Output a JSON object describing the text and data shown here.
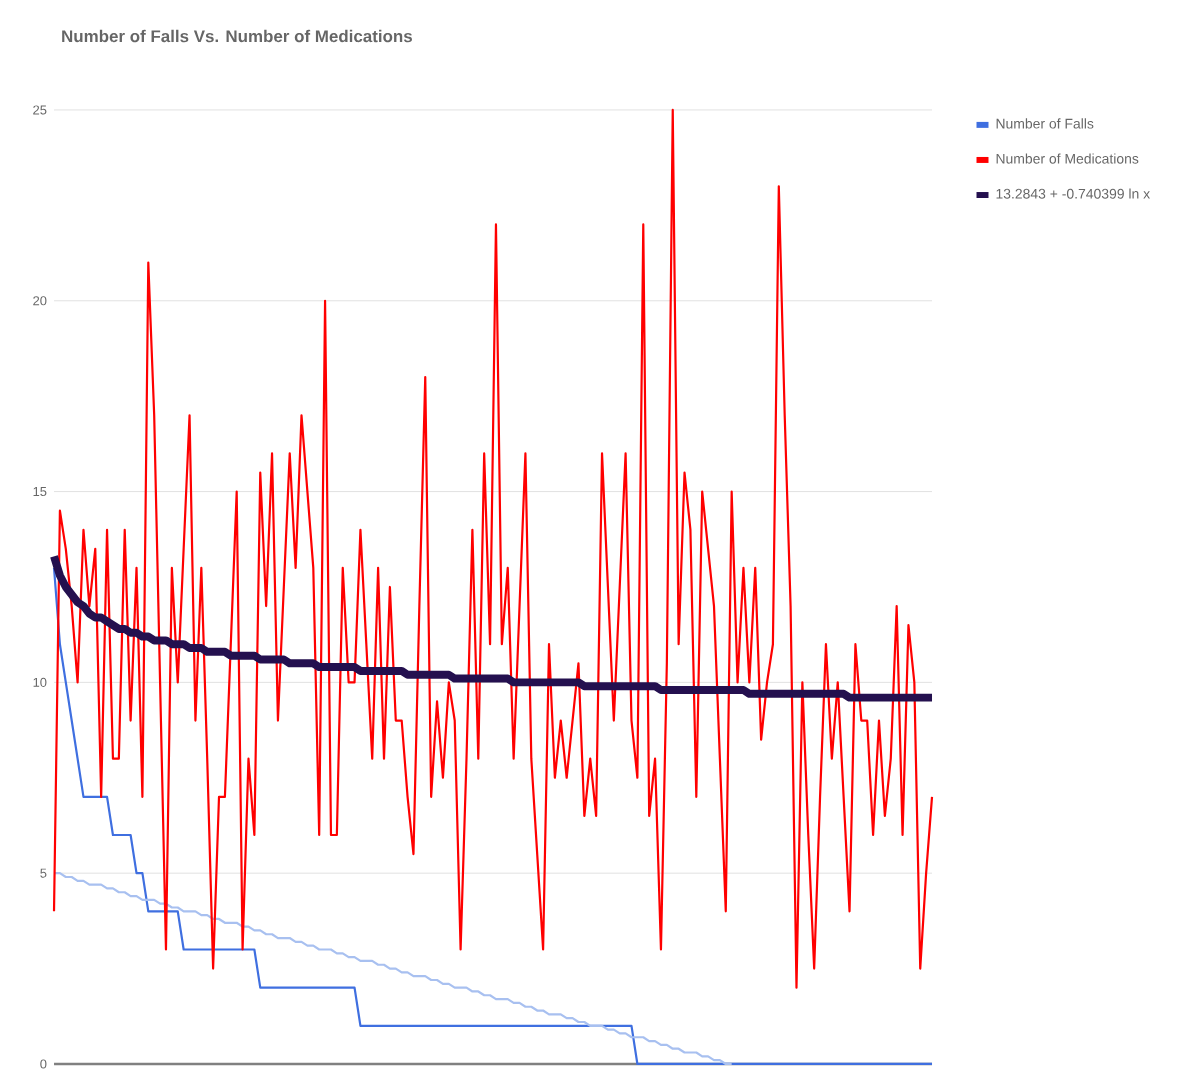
{
  "chart_data": {
    "type": "line",
    "title": "Number of Falls Vs. Number of Medications",
    "categories": [
      null,
      null,
      null,
      null,
      null,
      null,
      null,
      null,
      null,
      null,
      null,
      null,
      null,
      null,
      null,
      null,
      null,
      null,
      null,
      null,
      null,
      null,
      null,
      null,
      null,
      null,
      null,
      null,
      null,
      null,
      null,
      null,
      null,
      null,
      null,
      null,
      null,
      null,
      null,
      null,
      null,
      null,
      null,
      null,
      null,
      null,
      null,
      null,
      null,
      null,
      null,
      null,
      null,
      null,
      null,
      null,
      null,
      null,
      null,
      null,
      null,
      null,
      null,
      null,
      null,
      null,
      null,
      null,
      null,
      null,
      null,
      null,
      null,
      null,
      null,
      null,
      null,
      null,
      null,
      null,
      null,
      null,
      null,
      null,
      null,
      null,
      null,
      null,
      null,
      null,
      null,
      null,
      null,
      null,
      null,
      null,
      null,
      null,
      null,
      null,
      null,
      null,
      null,
      null,
      null,
      null,
      null,
      null,
      null,
      null,
      null,
      null,
      null,
      null,
      null,
      null,
      null,
      null,
      null,
      null,
      null,
      null,
      null,
      null,
      null,
      null,
      null,
      null,
      null,
      null,
      null,
      null,
      null,
      null,
      null,
      null,
      null,
      null,
      null,
      null,
      null,
      null,
      null,
      null,
      null,
      null,
      null,
      null,
      null,
      null
    ],
    "ylim": [
      0,
      25
    ],
    "yticks": [
      0,
      5,
      10,
      15,
      20,
      25
    ],
    "grid": "y",
    "legend": "right",
    "tick_labels": "y",
    "marker": "none",
    "line_style": "solid",
    "series": [
      {
        "name": "Number of Falls",
        "color": "#3f6fe0",
        "values": [
          13,
          11,
          10,
          9,
          8,
          7,
          7,
          7,
          7,
          7,
          6,
          6,
          6,
          6,
          5,
          5,
          4,
          4,
          4,
          4,
          4,
          4,
          3,
          3,
          3,
          3,
          3,
          3,
          3,
          3,
          3,
          3,
          3,
          3,
          3,
          2,
          2,
          2,
          2,
          2,
          2,
          2,
          2,
          2,
          2,
          2,
          2,
          2,
          2,
          2,
          2,
          2,
          1,
          1,
          1,
          1,
          1,
          1,
          1,
          1,
          1,
          1,
          1,
          1,
          1,
          1,
          1,
          1,
          1,
          1,
          1,
          1,
          1,
          1,
          1,
          1,
          1,
          1,
          1,
          1,
          1,
          1,
          1,
          1,
          1,
          1,
          1,
          1,
          1,
          1,
          1,
          1,
          1,
          1,
          1,
          1,
          1,
          1,
          1,
          0,
          0,
          0,
          0,
          0,
          0,
          0,
          0,
          0,
          0,
          0,
          0,
          0,
          0,
          0,
          0,
          0,
          0,
          0,
          0,
          0,
          0,
          0,
          0,
          0,
          0,
          0,
          0,
          0,
          0,
          0,
          0,
          0,
          0,
          0,
          0,
          0,
          0,
          0,
          0,
          0,
          0,
          0,
          0,
          0,
          0,
          0,
          0,
          0,
          0,
          0
        ]
      },
      {
        "color": "#a8c0f0",
        "values": [
          5,
          5,
          4.9,
          4.9,
          4.8,
          4.8,
          4.7,
          4.7,
          4.7,
          4.6,
          4.6,
          4.5,
          4.5,
          4.4,
          4.4,
          4.3,
          4.3,
          4.3,
          4.2,
          4.2,
          4.1,
          4.1,
          4,
          4,
          4,
          3.9,
          3.9,
          3.8,
          3.8,
          3.7,
          3.7,
          3.7,
          3.6,
          3.6,
          3.5,
          3.5,
          3.4,
          3.4,
          3.3,
          3.3,
          3.3,
          3.2,
          3.2,
          3.1,
          3.1,
          3,
          3,
          3,
          2.9,
          2.9,
          2.8,
          2.8,
          2.7,
          2.7,
          2.7,
          2.6,
          2.6,
          2.5,
          2.5,
          2.4,
          2.4,
          2.3,
          2.3,
          2.3,
          2.2,
          2.2,
          2.1,
          2.1,
          2,
          2,
          2,
          1.9,
          1.9,
          1.8,
          1.8,
          1.7,
          1.7,
          1.7,
          1.6,
          1.6,
          1.5,
          1.5,
          1.4,
          1.4,
          1.3,
          1.3,
          1.3,
          1.2,
          1.2,
          1.1,
          1.1,
          1,
          1,
          1,
          0.9,
          0.9,
          0.8,
          0.8,
          0.7,
          0.7,
          0.7,
          0.6,
          0.6,
          0.5,
          0.5,
          0.4,
          0.4,
          0.3,
          0.3,
          0.3,
          0.2,
          0.2,
          0.1,
          0.1,
          0,
          0,
          null,
          null,
          null,
          null,
          null,
          null,
          null,
          null,
          null,
          null,
          null,
          null,
          null,
          null,
          null,
          null,
          null,
          null,
          null,
          null,
          null,
          null,
          null,
          null,
          null,
          null,
          null,
          null,
          null,
          null,
          null,
          null,
          null,
          null
        ]
      },
      {
        "name": "Number of Medications",
        "color": "#ff0000",
        "values": [
          4,
          14.5,
          13.5,
          12,
          10,
          14,
          12,
          13.5,
          7,
          14,
          8,
          8,
          14,
          9,
          13,
          7,
          21,
          17,
          10,
          3,
          13,
          10,
          13.5,
          17,
          9,
          13,
          8,
          2.5,
          7,
          7,
          11,
          15,
          3,
          8,
          6,
          15.5,
          12,
          16,
          9,
          12.5,
          16,
          13,
          17,
          15,
          13,
          6,
          20,
          6,
          6,
          13,
          10,
          10,
          14,
          11,
          8,
          13,
          8,
          12.5,
          9,
          9,
          7,
          5.5,
          12,
          18,
          7,
          9.5,
          7.5,
          10,
          9,
          3,
          8,
          14,
          8,
          16,
          11,
          22,
          11,
          13,
          8,
          12,
          16,
          8,
          5.5,
          3,
          11,
          7.5,
          9,
          7.5,
          9,
          10.5,
          6.5,
          8,
          6.5,
          16,
          12.5,
          9,
          12.5,
          16,
          9,
          7.5,
          22,
          6.5,
          8,
          3,
          10.5,
          25,
          11,
          15.5,
          14,
          7,
          15,
          13.5,
          12,
          8,
          4,
          15,
          10,
          13,
          10,
          13,
          8.5,
          10,
          11,
          23,
          17,
          12,
          2,
          10,
          6,
          2.5,
          7,
          11,
          8,
          10,
          7,
          4,
          11,
          9,
          9,
          6,
          9,
          6.5,
          8,
          12,
          6,
          11.5,
          10,
          2.5,
          5,
          7
        ]
      },
      {
        "name": "13.2843 + -0.740399 ln x",
        "color": "#24104f",
        "values": [
          13.3,
          12.8,
          12.5,
          12.3,
          12.1,
          12,
          11.8,
          11.7,
          11.7,
          11.6,
          11.5,
          11.4,
          11.4,
          11.3,
          11.3,
          11.2,
          11.2,
          11.1,
          11.1,
          11.1,
          11,
          11,
          11,
          10.9,
          10.9,
          10.9,
          10.8,
          10.8,
          10.8,
          10.8,
          10.7,
          10.7,
          10.7,
          10.7,
          10.7,
          10.6,
          10.6,
          10.6,
          10.6,
          10.6,
          10.5,
          10.5,
          10.5,
          10.5,
          10.5,
          10.4,
          10.4,
          10.4,
          10.4,
          10.4,
          10.4,
          10.4,
          10.3,
          10.3,
          10.3,
          10.3,
          10.3,
          10.3,
          10.3,
          10.3,
          10.2,
          10.2,
          10.2,
          10.2,
          10.2,
          10.2,
          10.2,
          10.2,
          10.1,
          10.1,
          10.1,
          10.1,
          10.1,
          10.1,
          10.1,
          10.1,
          10.1,
          10.1,
          10,
          10,
          10,
          10,
          10,
          10,
          10,
          10,
          10,
          10,
          10,
          10,
          9.9,
          9.9,
          9.9,
          9.9,
          9.9,
          9.9,
          9.9,
          9.9,
          9.9,
          9.9,
          9.9,
          9.9,
          9.9,
          9.8,
          9.8,
          9.8,
          9.8,
          9.8,
          9.8,
          9.8,
          9.8,
          9.8,
          9.8,
          9.8,
          9.8,
          9.8,
          9.8,
          9.8,
          9.7,
          9.7,
          9.7,
          9.7,
          9.7,
          9.7,
          9.7,
          9.7,
          9.7,
          9.7,
          9.7,
          9.7,
          9.7,
          9.7,
          9.7,
          9.7,
          9.7,
          9.6,
          9.6,
          9.6,
          9.6,
          9.6,
          9.6,
          9.6,
          9.6,
          9.6,
          9.6,
          9.6,
          9.6,
          9.6,
          9.6,
          9.6
        ]
      }
    ]
  }
}
